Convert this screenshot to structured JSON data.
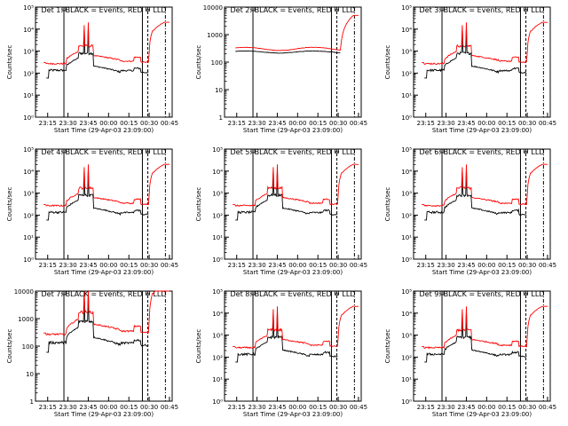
{
  "xlabel": "Start Time (29-Apr-03 23:09:00)",
  "ylabel": "Counts/sec",
  "x_ticks": [
    "23:15",
    "23:30",
    "23:45",
    "00:00",
    "00:15",
    "00:30",
    "00:45"
  ],
  "colors": {
    "events": "#000000",
    "lld": "#ff0000",
    "background": "#ffffff"
  },
  "chart_data": [
    {
      "type": "line",
      "title": "Det 1: BLACK = Events, RED = LLD",
      "ylim": [
        1,
        100000
      ],
      "yscale": "log",
      "y_ticks": [
        "10⁰",
        "10¹",
        "10²",
        "10³",
        "10⁴",
        "10⁵"
      ],
      "variant": "flare"
    },
    {
      "type": "line",
      "title": "Det 2: BLACK = Events, RED = LLD",
      "ylim": [
        1,
        10000
      ],
      "yscale": "log",
      "y_ticks": [
        "1",
        "10",
        "100",
        "1000",
        "10000"
      ],
      "variant": "flat"
    },
    {
      "type": "line",
      "title": "Det 3: BLACK = Events, RED = LLD",
      "ylim": [
        1,
        100000
      ],
      "yscale": "log",
      "y_ticks": [
        "10⁰",
        "10¹",
        "10²",
        "10³",
        "10⁴",
        "10⁵"
      ],
      "variant": "flare"
    },
    {
      "type": "line",
      "title": "Det 4: BLACK = Events, RED = LLD",
      "ylim": [
        1,
        100000
      ],
      "yscale": "log",
      "y_ticks": [
        "10⁰",
        "10¹",
        "10²",
        "10³",
        "10⁴",
        "10⁵"
      ],
      "variant": "flare"
    },
    {
      "type": "line",
      "title": "Det 5: BLACK = Events, RED = LLD",
      "ylim": [
        1,
        100000
      ],
      "yscale": "log",
      "y_ticks": [
        "10⁰",
        "10¹",
        "10²",
        "10³",
        "10⁴",
        "10⁵"
      ],
      "variant": "flare"
    },
    {
      "type": "line",
      "title": "Det 6: BLACK = Events, RED = LLD",
      "ylim": [
        1,
        100000
      ],
      "yscale": "log",
      "y_ticks": [
        "10⁰",
        "10¹",
        "10²",
        "10³",
        "10⁴",
        "10⁵"
      ],
      "variant": "flare"
    },
    {
      "type": "line",
      "title": "Det 7: BLACK = Events, RED = LLD",
      "ylim": [
        1,
        10000
      ],
      "yscale": "log",
      "y_ticks": [
        "1",
        "10",
        "100",
        "1000",
        "10000"
      ],
      "variant": "flare"
    },
    {
      "type": "line",
      "title": "Det 8: BLACK = Events, RED = LLD",
      "ylim": [
        1,
        100000
      ],
      "yscale": "log",
      "y_ticks": [
        "10⁰",
        "10¹",
        "10²",
        "10³",
        "10⁴",
        "10⁵"
      ],
      "variant": "flare"
    },
    {
      "type": "line",
      "title": "Det 9: BLACK = Events, RED = LLD",
      "ylim": [
        1,
        100000
      ],
      "yscale": "log",
      "y_ticks": [
        "10⁰",
        "10¹",
        "10²",
        "10³",
        "10⁴",
        "10⁵"
      ],
      "variant": "flare"
    }
  ]
}
